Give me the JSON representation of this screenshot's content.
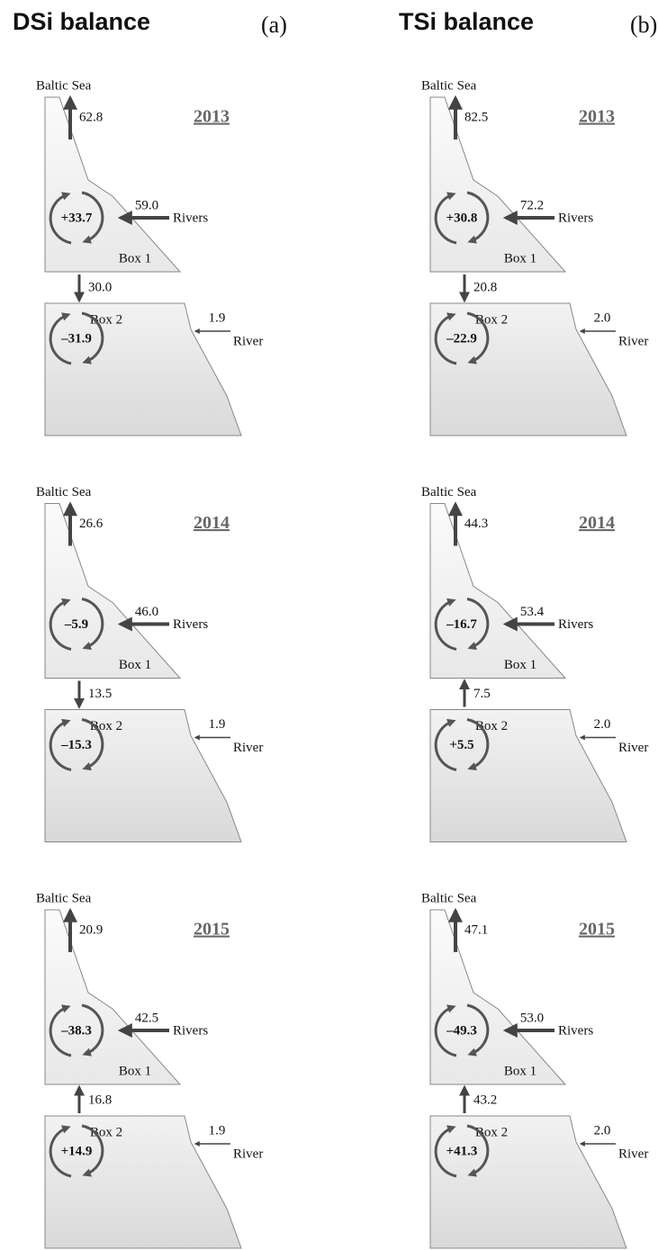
{
  "columns": [
    {
      "title": "DSi balance",
      "label": "(a)",
      "panels": [
        {
          "sea": "Baltic Sea",
          "year": "2013",
          "outflow": "62.8",
          "rivers_value": "59.0",
          "rivers_label": "Rivers",
          "box1": "Box 1",
          "box1_change": "+33.7",
          "exchange": "30.0",
          "exchange_direction": "down",
          "box2": "Box 2",
          "box2_change": "–31.9",
          "river_value": "1.9",
          "river_label": "River"
        },
        {
          "sea": "Baltic Sea",
          "year": "2014",
          "outflow": "26.6",
          "rivers_value": "46.0",
          "rivers_label": "Rivers",
          "box1": "Box 1",
          "box1_change": "–5.9",
          "exchange": "13.5",
          "exchange_direction": "down",
          "box2": "Box 2",
          "box2_change": "–15.3",
          "river_value": "1.9",
          "river_label": "River"
        },
        {
          "sea": "Baltic Sea",
          "year": "2015",
          "outflow": "20.9",
          "rivers_value": "42.5",
          "rivers_label": "Rivers",
          "box1": "Box 1",
          "box1_change": "–38.3",
          "exchange": "16.8",
          "exchange_direction": "up",
          "box2": "Box 2",
          "box2_change": "+14.9",
          "river_value": "1.9",
          "river_label": "River"
        }
      ]
    },
    {
      "title": "TSi balance",
      "label": "(b)",
      "panels": [
        {
          "sea": "Baltic Sea",
          "year": "2013",
          "outflow": "82.5",
          "rivers_value": "72.2",
          "rivers_label": "Rivers",
          "box1": "Box 1",
          "box1_change": "+30.8",
          "exchange": "20.8",
          "exchange_direction": "down",
          "box2": "Box 2",
          "box2_change": "–22.9",
          "river_value": "2.0",
          "river_label": "River"
        },
        {
          "sea": "Baltic Sea",
          "year": "2014",
          "outflow": "44.3",
          "rivers_value": "53.4",
          "rivers_label": "Rivers",
          "box1": "Box 1",
          "box1_change": "–16.7",
          "exchange": "7.5",
          "exchange_direction": "up",
          "box2": "Box 2",
          "box2_change": "+5.5",
          "river_value": "2.0",
          "river_label": "River"
        },
        {
          "sea": "Baltic Sea",
          "year": "2015",
          "outflow": "47.1",
          "rivers_value": "53.0",
          "rivers_label": "Rivers",
          "box1": "Box 1",
          "box1_change": "–49.3",
          "exchange": "43.2",
          "exchange_direction": "up",
          "box2": "Box 2",
          "box2_change": "+41.3",
          "river_value": "2.0",
          "river_label": "River"
        }
      ]
    }
  ]
}
